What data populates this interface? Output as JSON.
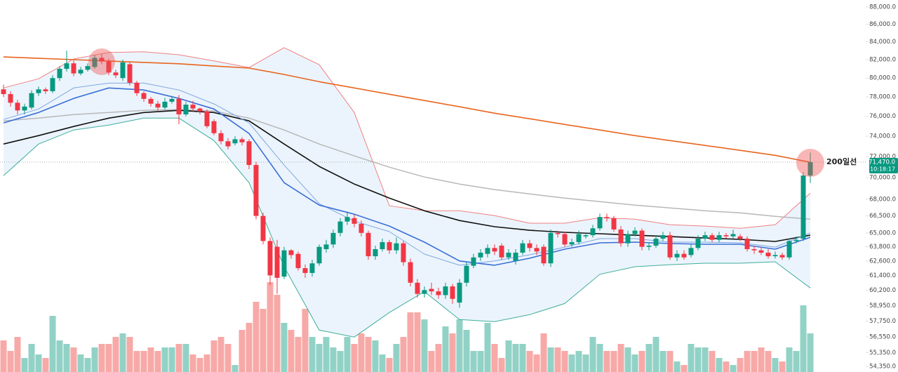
{
  "chart_data": {
    "type": "candlestick",
    "log_scale": true,
    "ylim": [
      53940,
      88830
    ],
    "yticks": [
      {
        "value": 88000,
        "label": "88,000.0"
      },
      {
        "value": 86000,
        "label": "86,000.0"
      },
      {
        "value": 84000,
        "label": "84,000.0"
      },
      {
        "value": 82000,
        "label": "82,000.0"
      },
      {
        "value": 80000,
        "label": "80,000.0"
      },
      {
        "value": 78000,
        "label": "78,000.0"
      },
      {
        "value": 76000,
        "label": "76,000.0"
      },
      {
        "value": 74000,
        "label": "74,000.0"
      },
      {
        "value": 72000,
        "label": "72,000.0"
      },
      {
        "value": 70000,
        "label": "70,000.0"
      },
      {
        "value": 68000,
        "label": "68,000.0"
      },
      {
        "value": 66500,
        "label": "66,500.0"
      },
      {
        "value": 65000,
        "label": "65,000.0"
      },
      {
        "value": 63800,
        "label": "63,800.0"
      },
      {
        "value": 62600,
        "label": "62,600.0"
      },
      {
        "value": 61400,
        "label": "61,400.0"
      },
      {
        "value": 60200,
        "label": "60,200.0"
      },
      {
        "value": 58950,
        "label": "58,950.0"
      },
      {
        "value": 57750,
        "label": "57,750.0"
      },
      {
        "value": 56550,
        "label": "56,550.0"
      },
      {
        "value": 55350,
        "label": "55,350.0"
      },
      {
        "value": 54350,
        "label": "54,350.0"
      }
    ],
    "up_color": "#089981",
    "down_color": "#f23645",
    "volume_up_color": "#92d2c6",
    "volume_down_color": "#f7a9a7",
    "open": [
      78800,
      78300,
      77400,
      76600,
      76900,
      78400,
      78800,
      78600,
      80000,
      81000,
      81600,
      80500,
      80900,
      81200,
      82200,
      81800,
      80600,
      80000,
      81500,
      79500,
      78400,
      77800,
      77300,
      76900,
      77500,
      77800,
      76200,
      77200,
      76800,
      76500,
      75500,
      74300,
      73500,
      73300,
      73700,
      73500,
      71200,
      66500,
      64300,
      63800,
      61300,
      63500,
      63200,
      62000,
      61600,
      62400,
      63600,
      64000,
      65000,
      66000,
      66300,
      65800,
      65000,
      63000,
      63600,
      64200,
      63500,
      64100,
      62500,
      60800,
      59900,
      60300,
      60100,
      59800,
      60500,
      59200,
      60800,
      62200,
      62900,
      63200,
      63700,
      63900,
      62900,
      62600,
      63300,
      64100,
      63700,
      63800,
      62400,
      65000,
      64900,
      64000,
      64200,
      64700,
      64800,
      65400,
      66400,
      66300,
      65300,
      64100,
      64900,
      65200,
      63800,
      63900,
      64500,
      64800,
      62900,
      63200,
      63100,
      63700,
      64500,
      64800,
      64400,
      64800,
      64700,
      64700,
      64500,
      63600,
      63500,
      63300,
      63000,
      63100,
      62900,
      64300,
      64500,
      70200
    ],
    "high": [
      79300,
      78600,
      77700,
      77300,
      78700,
      79100,
      79000,
      80300,
      81300,
      83000,
      81900,
      81200,
      81600,
      82500,
      82600,
      82100,
      80900,
      82000,
      81700,
      79700,
      78600,
      78000,
      77600,
      77900,
      78100,
      78200,
      77500,
      77600,
      76900,
      76700,
      75700,
      74600,
      73800,
      74000,
      73900,
      73700,
      71500,
      66800,
      64600,
      64400,
      63800,
      63600,
      63400,
      62300,
      62700,
      64000,
      64400,
      65300,
      66300,
      66900,
      66600,
      66100,
      65200,
      63900,
      64500,
      64400,
      64600,
      64300,
      62800,
      61100,
      60500,
      60800,
      60400,
      60800,
      60700,
      61100,
      62500,
      63200,
      63600,
      64000,
      64000,
      64100,
      63600,
      63600,
      64400,
      64400,
      64000,
      64000,
      65300,
      65200,
      65100,
      64500,
      65200,
      65000,
      65700,
      66700,
      66700,
      66500,
      65600,
      65200,
      65500,
      65400,
      64200,
      64800,
      65100,
      65100,
      63500,
      63500,
      64000,
      64800,
      65100,
      65000,
      65100,
      65000,
      65300,
      64900,
      64700,
      63900,
      63800,
      63600,
      63400,
      63300,
      64500,
      64700,
      70500,
      72400
    ],
    "low": [
      78000,
      77000,
      76200,
      76200,
      76700,
      78100,
      78300,
      78400,
      79700,
      80700,
      80200,
      80300,
      80700,
      81000,
      81500,
      80300,
      80000,
      79700,
      79200,
      78100,
      77500,
      77000,
      76600,
      76700,
      77300,
      75200,
      76000,
      76500,
      76200,
      74800,
      74100,
      73200,
      72700,
      73100,
      73100,
      70800,
      66200,
      64000,
      60600,
      59900,
      61100,
      62800,
      61800,
      61200,
      61300,
      62200,
      63300,
      63700,
      64700,
      65700,
      65500,
      64700,
      62700,
      62700,
      63400,
      63200,
      63200,
      62200,
      60500,
      59600,
      59600,
      59800,
      59500,
      59500,
      59100,
      58800,
      60500,
      62000,
      62600,
      62900,
      63100,
      62700,
      62700,
      62300,
      63100,
      63400,
      63100,
      62200,
      62100,
      64600,
      63800,
      63800,
      64000,
      64500,
      64600,
      65200,
      66000,
      65100,
      63800,
      63800,
      64700,
      63500,
      63500,
      63700,
      64300,
      62700,
      62600,
      62700,
      62900,
      63500,
      64300,
      64200,
      64200,
      64500,
      64500,
      64300,
      63400,
      63200,
      63100,
      62800,
      62800,
      62700,
      62700,
      64100,
      64300,
      69500
    ],
    "close": [
      78300,
      77400,
      76600,
      77000,
      78400,
      78800,
      78600,
      80000,
      81000,
      81600,
      80500,
      80900,
      81300,
      82200,
      81800,
      80600,
      80300,
      81700,
      79500,
      78400,
      77800,
      77300,
      76900,
      77500,
      77800,
      76200,
      77200,
      76800,
      76500,
      75000,
      74300,
      73500,
      73000,
      73700,
      73400,
      71200,
      66500,
      64300,
      61400,
      61200,
      63500,
      63100,
      62000,
      61600,
      62400,
      63800,
      64000,
      65000,
      66000,
      66400,
      65800,
      65000,
      63000,
      63600,
      64200,
      63500,
      64100,
      62500,
      60800,
      59900,
      60200,
      60100,
      59800,
      60500,
      59500,
      60800,
      62200,
      62900,
      63300,
      63700,
      63400,
      62900,
      63300,
      63300,
      64100,
      63700,
      63400,
      62400,
      65000,
      64900,
      64000,
      64200,
      64900,
      64800,
      65400,
      66400,
      66300,
      65300,
      64100,
      64900,
      65200,
      63800,
      63900,
      64500,
      64800,
      62900,
      63200,
      62900,
      63700,
      64500,
      64800,
      64400,
      64800,
      64700,
      64900,
      64500,
      63600,
      63500,
      63300,
      63000,
      63100,
      62900,
      64300,
      64400,
      70200,
      71470
    ],
    "volume": [
      45,
      30,
      50,
      20,
      40,
      25,
      20,
      80,
      45,
      40,
      35,
      25,
      20,
      35,
      40,
      40,
      50,
      55,
      50,
      30,
      30,
      35,
      30,
      35,
      35,
      40,
      40,
      25,
      20,
      25,
      45,
      50,
      40,
      10,
      60,
      70,
      100,
      90,
      128,
      110,
      70,
      60,
      50,
      90,
      50,
      40,
      50,
      35,
      30,
      50,
      40,
      55,
      50,
      45,
      25,
      20,
      40,
      50,
      85,
      85,
      75,
      30,
      40,
      65,
      55,
      75,
      60,
      30,
      30,
      70,
      40,
      20,
      45,
      40,
      40,
      30,
      25,
      55,
      35,
      35,
      30,
      25,
      30,
      25,
      50,
      40,
      30,
      30,
      40,
      35,
      25,
      30,
      40,
      50,
      30,
      30,
      15,
      10,
      40,
      35,
      35,
      30,
      20,
      15,
      10,
      20,
      30,
      30,
      35,
      30,
      20,
      15,
      35,
      30,
      95,
      55
    ],
    "line_x": [
      0,
      5,
      10,
      15,
      20,
      25,
      30,
      35,
      40,
      45,
      50,
      55,
      60,
      65,
      70,
      75,
      80,
      85,
      90,
      95,
      100,
      105,
      110,
      115
    ],
    "band": {
      "fill": "#e3f0fb",
      "upper": {
        "color": "#f08080",
        "values": [
          78950,
          79930,
          82080,
          82800,
          82880,
          82540,
          81860,
          81140,
          83330,
          81450,
          76390,
          67410,
          66960,
          66960,
          66530,
          65850,
          65850,
          66340,
          66210,
          65720,
          65600,
          65410,
          65720,
          68560
        ]
      },
      "lower": {
        "color": "#3fae9a",
        "values": [
          70190,
          73230,
          74620,
          75110,
          75820,
          75820,
          73570,
          69530,
          62120,
          57060,
          56530,
          58420,
          60080,
          57870,
          57710,
          58250,
          59130,
          61490,
          62120,
          62290,
          62410,
          62410,
          62530,
          60370
        ]
      }
    },
    "lines": [
      {
        "color": "#b8b8b8",
        "width": 1.5,
        "values": [
          75540,
          75820,
          76180,
          76390,
          76610,
          76680,
          76540,
          75820,
          74620,
          73230,
          72070,
          70990,
          70060,
          69400,
          68890,
          68490,
          68100,
          67790,
          67470,
          67220,
          66960,
          66770,
          66460,
          66210
        ]
      },
      {
        "color": "#111111",
        "width": 1.6,
        "values": [
          73230,
          74060,
          74970,
          75820,
          76390,
          76610,
          76390,
          75540,
          73230,
          71060,
          69400,
          68100,
          66960,
          66090,
          65540,
          65230,
          65050,
          64930,
          64800,
          64680,
          64560,
          64440,
          64260,
          64800
        ]
      },
      {
        "color": "#e8651f",
        "width": 1.6,
        "values": [
          82300,
          82150,
          82000,
          81850,
          81700,
          81550,
          81300,
          81080,
          80390,
          79610,
          78950,
          78280,
          77630,
          76980,
          76320,
          75750,
          75180,
          74620,
          74060,
          73570,
          73090,
          72610,
          72130,
          71460
        ]
      },
      {
        "color": "#7fa6e0",
        "width": 1,
        "values": [
          75680,
          76750,
          78950,
          79460,
          79460,
          78730,
          77270,
          75330,
          71190,
          67600,
          66030,
          65110,
          63180,
          62240,
          62600,
          63120,
          63770,
          64500,
          64500,
          64200,
          64200,
          64140,
          63770,
          65000
        ]
      },
      {
        "color": "#3b6fd6",
        "width": 1.6,
        "values": [
          75330,
          76390,
          77850,
          78950,
          78730,
          77850,
          76750,
          74270,
          69530,
          67470,
          66650,
          65600,
          64200,
          62600,
          62240,
          62830,
          63600,
          64140,
          64200,
          64080,
          64020,
          64020,
          63600,
          64620
        ]
      }
    ],
    "annotation": "200일선",
    "last_price_label": "71,470.0",
    "countdown": "10:18:17"
  }
}
